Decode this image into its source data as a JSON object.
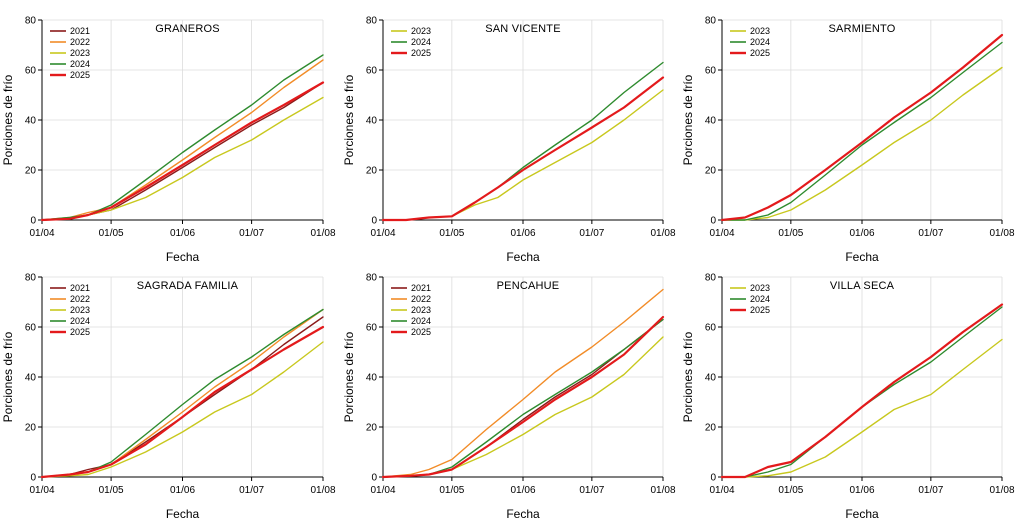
{
  "figure": {
    "ylabel": "Porciones de frío",
    "xlabel": "Fecha",
    "x_tick_labels": [
      "01/04",
      "01/05",
      "01/06",
      "01/07",
      "01/08"
    ],
    "y_tick_labels": [
      "0",
      "20",
      "40",
      "60",
      "80"
    ]
  },
  "colors": {
    "2021": "#8b1a1a",
    "2022": "#f28c28",
    "2023": "#c8c81e",
    "2024": "#2e8b2e",
    "2025": "#e31a1c"
  },
  "chart_data": [
    {
      "type": "line",
      "title": "GRANEROS",
      "xlabel": "Fecha",
      "ylabel": "Porciones de frío",
      "x_unit": "days since 01/04",
      "xlim": [
        0,
        122
      ],
      "ylim": [
        0,
        80
      ],
      "legend": [
        "2021",
        "2022",
        "2023",
        "2024",
        "2025"
      ],
      "series": [
        {
          "name": "2021",
          "x": [
            0,
            12,
            20,
            30,
            45,
            61,
            75,
            91,
            105,
            122
          ],
          "y": [
            0,
            0.5,
            2,
            4,
            12,
            21,
            29,
            38,
            45,
            55
          ]
        },
        {
          "name": "2022",
          "x": [
            0,
            12,
            20,
            30,
            45,
            61,
            75,
            91,
            105,
            122
          ],
          "y": [
            0,
            1,
            3,
            5,
            14,
            24,
            33,
            43,
            53,
            64
          ]
        },
        {
          "name": "2023",
          "x": [
            0,
            12,
            20,
            30,
            45,
            61,
            75,
            91,
            105,
            122
          ],
          "y": [
            0,
            0.5,
            2,
            4,
            9,
            17,
            25,
            32,
            40,
            49
          ]
        },
        {
          "name": "2024",
          "x": [
            0,
            12,
            20,
            30,
            45,
            61,
            75,
            91,
            105,
            122
          ],
          "y": [
            0,
            1,
            2,
            6,
            16,
            27,
            36,
            46,
            56,
            66
          ]
        },
        {
          "name": "2025",
          "x": [
            0,
            12,
            20,
            30,
            45,
            61,
            75,
            91,
            105,
            122
          ],
          "y": [
            0,
            0.5,
            2,
            5,
            13,
            22,
            30,
            39,
            46,
            55
          ]
        }
      ]
    },
    {
      "type": "line",
      "title": "SAN VICENTE",
      "xlabel": "Fecha",
      "ylabel": "Porciones de frío",
      "x_unit": "days since 01/04",
      "xlim": [
        0,
        122
      ],
      "ylim": [
        0,
        80
      ],
      "legend": [
        "2023",
        "2024",
        "2025"
      ],
      "series": [
        {
          "name": "2023",
          "x": [
            0,
            10,
            20,
            30,
            40,
            50,
            61,
            75,
            91,
            105,
            122
          ],
          "y": [
            0,
            0,
            1,
            1.5,
            6,
            9,
            16,
            23,
            31,
            40,
            52
          ]
        },
        {
          "name": "2024",
          "x": [
            0,
            10,
            20,
            30,
            40,
            50,
            61,
            75,
            91,
            105,
            122
          ],
          "y": [
            0,
            0,
            1,
            1.5,
            7,
            13,
            21,
            30,
            40,
            51,
            63
          ]
        },
        {
          "name": "2025",
          "x": [
            0,
            10,
            20,
            30,
            40,
            50,
            61,
            75,
            91,
            105,
            122
          ],
          "y": [
            0,
            0,
            1,
            1.5,
            7,
            13,
            20,
            28,
            37,
            45,
            57
          ]
        }
      ]
    },
    {
      "type": "line",
      "title": "SARMIENTO",
      "xlabel": "Fecha",
      "ylabel": "Porciones de frío",
      "x_unit": "days since 01/04",
      "xlim": [
        0,
        122
      ],
      "ylim": [
        0,
        80
      ],
      "legend": [
        "2023",
        "2024",
        "2025"
      ],
      "series": [
        {
          "name": "2023",
          "x": [
            0,
            10,
            20,
            30,
            45,
            61,
            75,
            91,
            105,
            122
          ],
          "y": [
            0,
            0,
            1,
            4,
            12,
            22,
            31,
            40,
            50,
            61
          ]
        },
        {
          "name": "2024",
          "x": [
            0,
            10,
            20,
            30,
            45,
            61,
            75,
            91,
            105,
            122
          ],
          "y": [
            0,
            0,
            2,
            7,
            18,
            30,
            39,
            49,
            59,
            71
          ]
        },
        {
          "name": "2025",
          "x": [
            0,
            10,
            20,
            30,
            45,
            61,
            75,
            91,
            105,
            122
          ],
          "y": [
            0,
            1,
            5,
            10,
            20,
            31,
            41,
            51,
            61,
            74
          ]
        }
      ]
    },
    {
      "type": "line",
      "title": "SAGRADA FAMILIA",
      "xlabel": "Fecha",
      "ylabel": "Porciones de frío",
      "x_unit": "days since 01/04",
      "xlim": [
        0,
        122
      ],
      "ylim": [
        0,
        80
      ],
      "legend": [
        "2021",
        "2022",
        "2023",
        "2024",
        "2025"
      ],
      "series": [
        {
          "name": "2021",
          "x": [
            0,
            12,
            20,
            30,
            45,
            61,
            75,
            91,
            105,
            122
          ],
          "y": [
            0,
            1,
            3,
            5,
            14,
            24,
            33,
            43,
            53,
            64
          ]
        },
        {
          "name": "2022",
          "x": [
            0,
            12,
            20,
            30,
            45,
            61,
            75,
            91,
            105,
            122
          ],
          "y": [
            0,
            1,
            2,
            5,
            15,
            26,
            36,
            46,
            56,
            67
          ]
        },
        {
          "name": "2023",
          "x": [
            0,
            12,
            20,
            30,
            45,
            61,
            75,
            91,
            105,
            122
          ],
          "y": [
            0,
            0.5,
            1,
            4,
            10,
            18,
            26,
            33,
            42,
            54
          ]
        },
        {
          "name": "2024",
          "x": [
            0,
            12,
            20,
            30,
            45,
            61,
            75,
            91,
            105,
            122
          ],
          "y": [
            0,
            1,
            2,
            6,
            17,
            29,
            39,
            48,
            57,
            67
          ]
        },
        {
          "name": "2025",
          "x": [
            0,
            12,
            20,
            30,
            45,
            61,
            75,
            91,
            105,
            122
          ],
          "y": [
            0,
            1,
            2,
            5,
            13,
            24,
            34,
            43,
            51,
            60
          ]
        }
      ]
    },
    {
      "type": "line",
      "title": "PENCAHUE",
      "xlabel": "Fecha",
      "ylabel": "Porciones de frío",
      "x_unit": "days since 01/04",
      "xlim": [
        0,
        122
      ],
      "ylim": [
        0,
        80
      ],
      "legend": [
        "2021",
        "2022",
        "2023",
        "2024",
        "2025"
      ],
      "series": [
        {
          "name": "2021",
          "x": [
            0,
            12,
            20,
            30,
            45,
            61,
            75,
            91,
            105,
            122
          ],
          "y": [
            0,
            0.5,
            1,
            3,
            12,
            23,
            32,
            41,
            51,
            63
          ]
        },
        {
          "name": "2022",
          "x": [
            0,
            12,
            20,
            30,
            45,
            61,
            75,
            91,
            105,
            122
          ],
          "y": [
            0,
            1,
            3,
            7,
            19,
            31,
            42,
            52,
            62,
            75
          ]
        },
        {
          "name": "2023",
          "x": [
            0,
            12,
            20,
            30,
            45,
            61,
            75,
            91,
            105,
            122
          ],
          "y": [
            0,
            0.5,
            1,
            3,
            9,
            17,
            25,
            32,
            41,
            56
          ]
        },
        {
          "name": "2024",
          "x": [
            0,
            12,
            20,
            30,
            45,
            61,
            75,
            91,
            105,
            122
          ],
          "y": [
            0,
            0.5,
            1,
            4,
            14,
            25,
            33,
            42,
            51,
            63
          ]
        },
        {
          "name": "2025",
          "x": [
            0,
            12,
            20,
            30,
            45,
            61,
            75,
            91,
            105,
            122
          ],
          "y": [
            0,
            0.5,
            1,
            3,
            12,
            22,
            31,
            40,
            49,
            64
          ]
        }
      ]
    },
    {
      "type": "line",
      "title": "VILLA SECA",
      "xlabel": "Fecha",
      "ylabel": "Porciones de frío",
      "x_unit": "days since 01/04",
      "xlim": [
        0,
        122
      ],
      "ylim": [
        0,
        80
      ],
      "legend": [
        "2023",
        "2024",
        "2025"
      ],
      "series": [
        {
          "name": "2023",
          "x": [
            0,
            10,
            20,
            30,
            45,
            61,
            75,
            91,
            105,
            122
          ],
          "y": [
            0,
            0,
            0.5,
            2,
            8,
            18,
            27,
            33,
            43,
            55
          ]
        },
        {
          "name": "2024",
          "x": [
            0,
            10,
            20,
            30,
            45,
            61,
            75,
            91,
            105,
            122
          ],
          "y": [
            0,
            0,
            2,
            5,
            16,
            28,
            37,
            46,
            56,
            68
          ]
        },
        {
          "name": "2025",
          "x": [
            0,
            10,
            20,
            30,
            45,
            61,
            75,
            91,
            105,
            122
          ],
          "y": [
            0,
            0,
            4,
            6,
            16,
            28,
            38,
            48,
            58,
            69
          ]
        }
      ]
    }
  ]
}
